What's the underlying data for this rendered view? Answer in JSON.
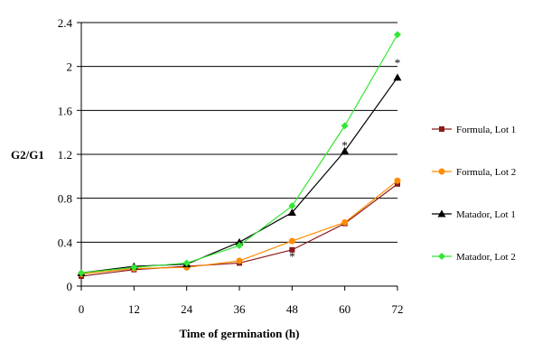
{
  "chart_data": {
    "type": "line",
    "title": "",
    "xlabel": "Time of germination (h)",
    "ylabel": "G2/G1",
    "x": [
      0,
      12,
      24,
      36,
      48,
      60,
      72
    ],
    "xlim": [
      0,
      72
    ],
    "ylim": [
      0,
      2.4
    ],
    "x_ticks": [
      "0",
      "12",
      "24",
      "36",
      "48",
      "60",
      "72"
    ],
    "y_ticks": [
      "0",
      "0.4",
      "0.8",
      "1.2",
      "1.6",
      "2",
      "2.4"
    ],
    "y_tick_values": [
      0,
      0.4,
      0.8,
      1.2,
      1.6,
      2.0,
      2.4
    ],
    "grid": "horizontal",
    "legend_position": "right",
    "series": [
      {
        "name": "Formula, Lot 1",
        "color": "#8B1A1A",
        "marker": "square",
        "values": [
          0.09,
          0.15,
          0.18,
          0.21,
          0.33,
          0.57,
          0.93
        ]
      },
      {
        "name": "Formula, Lot 2",
        "color": "#FF8C00",
        "marker": "circle",
        "values": [
          0.11,
          0.16,
          0.17,
          0.23,
          0.41,
          0.58,
          0.96
        ]
      },
      {
        "name": "Matador, Lot 1",
        "color": "#000000",
        "marker": "triangle",
        "values": [
          0.12,
          0.18,
          0.2,
          0.4,
          0.67,
          1.23,
          1.9
        ]
      },
      {
        "name": "Matador, Lot 2",
        "color": "#33E633",
        "marker": "diamond",
        "values": [
          0.12,
          0.17,
          0.21,
          0.37,
          0.73,
          1.46,
          2.29
        ]
      }
    ],
    "annotations": [
      {
        "text": "*",
        "x": 48,
        "y": 0.31
      },
      {
        "text": "*",
        "x": 60,
        "y": 1.32
      },
      {
        "text": "*",
        "x": 72,
        "y": 2.07
      }
    ]
  }
}
